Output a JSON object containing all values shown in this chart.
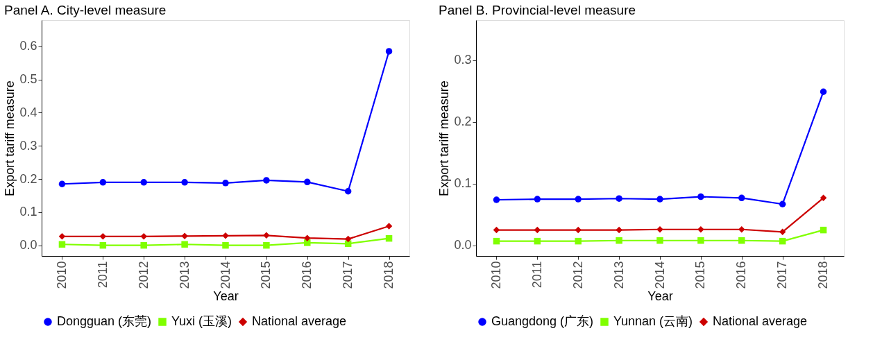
{
  "chart_data": [
    {
      "type": "line",
      "title": "Panel A. City-level measure",
      "xlabel": "Year",
      "ylabel": "Export tariff measure",
      "categories": [
        "2010",
        "2011",
        "2012",
        "2013",
        "2014",
        "2015",
        "2016",
        "2017",
        "2018"
      ],
      "ylim": [
        -0.032,
        0.679
      ],
      "yticks": [
        {
          "value": 0,
          "label": "0.0"
        },
        {
          "value": 0.1,
          "label": "0.1"
        },
        {
          "value": 0.2,
          "label": "0.2"
        },
        {
          "value": 0.3,
          "label": "0.3"
        },
        {
          "value": 0.4,
          "label": "0.4"
        },
        {
          "value": 0.5,
          "label": "0.5"
        },
        {
          "value": 0.6,
          "label": "0.6"
        }
      ],
      "grid": false,
      "legend": "bottom",
      "series": [
        {
          "name": "Dongguan (东莞)",
          "color": "#0000ff",
          "marker": "circle",
          "values": [
            0.185,
            0.19,
            0.19,
            0.19,
            0.188,
            0.196,
            0.191,
            0.163,
            0.585
          ]
        },
        {
          "name": "Yuxi (玉溪)",
          "color": "#80ff00",
          "marker": "square",
          "values": [
            0.003,
            0.0,
            0.0,
            0.003,
            0.0,
            0.0,
            0.008,
            0.005,
            0.021
          ]
        },
        {
          "name": "National average",
          "color": "#cc0000",
          "marker": "diamond",
          "values": [
            0.027,
            0.027,
            0.027,
            0.028,
            0.029,
            0.03,
            0.022,
            0.019,
            0.058
          ]
        }
      ]
    },
    {
      "type": "line",
      "title": "Panel B. Provincial-level measure",
      "xlabel": "Year",
      "ylabel": "Export tariff measure",
      "categories": [
        "2010",
        "2011",
        "2012",
        "2013",
        "2014",
        "2015",
        "2016",
        "2017",
        "2018"
      ],
      "ylim": [
        -0.017,
        0.365
      ],
      "yticks": [
        {
          "value": 0,
          "label": "0.0"
        },
        {
          "value": 0.1,
          "label": "0.1"
        },
        {
          "value": 0.2,
          "label": "0.2"
        },
        {
          "value": 0.3,
          "label": "0.3"
        }
      ],
      "grid": false,
      "legend": "bottom",
      "series": [
        {
          "name": "Guangdong (广东)",
          "color": "#0000ff",
          "marker": "circle",
          "values": [
            0.074,
            0.075,
            0.075,
            0.076,
            0.075,
            0.079,
            0.077,
            0.067,
            0.249
          ]
        },
        {
          "name": "Yunnan (云南)",
          "color": "#80ff00",
          "marker": "square",
          "values": [
            0.007,
            0.007,
            0.007,
            0.008,
            0.008,
            0.008,
            0.008,
            0.007,
            0.025
          ]
        },
        {
          "name": "National average",
          "color": "#cc0000",
          "marker": "diamond",
          "values": [
            0.025,
            0.025,
            0.025,
            0.025,
            0.026,
            0.026,
            0.026,
            0.022,
            0.077
          ]
        }
      ]
    }
  ]
}
